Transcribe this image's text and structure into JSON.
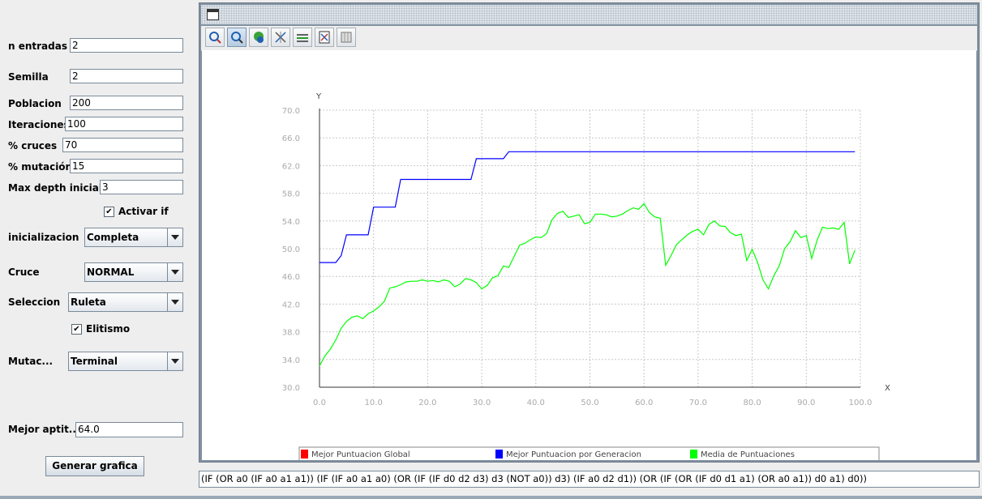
{
  "params": {
    "n_entradas": {
      "label": "n entradas",
      "value": "2"
    },
    "semilla": {
      "label": "Semilla",
      "value": "2"
    },
    "poblacion": {
      "label": "Poblacion",
      "value": "200"
    },
    "iteraciones": {
      "label": "Iteraciones",
      "value": "100"
    },
    "cruces": {
      "label": "% cruces",
      "value": "70"
    },
    "mutacion": {
      "label": "% mutación",
      "value": "15"
    },
    "max_depth": {
      "label": "Max depth inicial",
      "value": "3"
    },
    "activar_if": {
      "label": "Activar if",
      "checked": true
    },
    "inicializacion": {
      "label": "inicializacion",
      "value": "Completa"
    },
    "cruce": {
      "label": "Cruce",
      "value": "NORMAL"
    },
    "seleccion": {
      "label": "Seleccion",
      "value": "Ruleta"
    },
    "elitismo": {
      "label": "Elitismo",
      "checked": true
    },
    "mutac": {
      "label": "Mutac...",
      "value": "Terminal"
    },
    "mejor_aptitud": {
      "label": "Mejor aptit...",
      "value": "64.0"
    },
    "generar_label": "Generar grafica"
  },
  "toolbar": {
    "icons": [
      "zoom-select-icon",
      "zoom-icon",
      "pan-icon",
      "fit-axes-icon",
      "grid-toggle-icon",
      "export-icon",
      "table-icon"
    ]
  },
  "expression": "(IF (OR a0 (IF a0 a1 a1)) (IF (IF a0 a1 a0) (OR (IF (IF d0 d2 d3) d3 (NOT a0)) d3) (IF a0 d2 d1)) (OR (IF (OR (IF d0 d1 a1) (OR a0 a1)) d0 a1) d0))",
  "chart_data": {
    "type": "line",
    "xlabel": "X",
    "ylabel": "Y",
    "xlim": [
      0,
      100
    ],
    "ylim": [
      30,
      70
    ],
    "xticks": [
      "0.0",
      "10.0",
      "20.0",
      "30.0",
      "40.0",
      "50.0",
      "60.0",
      "70.0",
      "80.0",
      "90.0",
      "100.0"
    ],
    "yticks": [
      "30.0",
      "34.0",
      "38.0",
      "42.0",
      "46.0",
      "50.0",
      "54.0",
      "58.0",
      "62.0",
      "66.0",
      "70.0"
    ],
    "grid": true,
    "legend_position": "bottom",
    "series": [
      {
        "name": "Mejor Puntuacion Global",
        "color": "#ff0000",
        "points": []
      },
      {
        "name": "Mejor Puntuacion por Generacion",
        "color": "#0000ff",
        "points": [
          [
            0,
            48
          ],
          [
            3,
            48
          ],
          [
            4,
            49
          ],
          [
            5,
            52
          ],
          [
            9,
            52
          ],
          [
            10,
            56
          ],
          [
            14,
            56
          ],
          [
            15,
            60
          ],
          [
            28,
            60
          ],
          [
            29,
            63
          ],
          [
            34,
            63
          ],
          [
            35,
            64
          ],
          [
            99,
            64
          ]
        ]
      },
      {
        "name": "Media de Puntuaciones",
        "color": "#00ff00",
        "points": [
          [
            0,
            33.1
          ],
          [
            1,
            34.5
          ],
          [
            2,
            35.5
          ],
          [
            3,
            36.8
          ],
          [
            4,
            38.5
          ],
          [
            5,
            39.5
          ],
          [
            6,
            40.1
          ],
          [
            7,
            40.3
          ],
          [
            8,
            39.9
          ],
          [
            9,
            40.6
          ],
          [
            10,
            41
          ],
          [
            11,
            41.6
          ],
          [
            12,
            42.4
          ],
          [
            13,
            44.3
          ],
          [
            14,
            44.5
          ],
          [
            15,
            44.8
          ],
          [
            16,
            45.2
          ],
          [
            17,
            45.3
          ],
          [
            18,
            45.3
          ],
          [
            19,
            45.5
          ],
          [
            20,
            45.3
          ],
          [
            21,
            45.4
          ],
          [
            22,
            45.2
          ],
          [
            23,
            45.5
          ],
          [
            24,
            45.3
          ],
          [
            25,
            44.5
          ],
          [
            26,
            44.9
          ],
          [
            27,
            45.7
          ],
          [
            28,
            45.5
          ],
          [
            29,
            45.1
          ],
          [
            30,
            44.2
          ],
          [
            31,
            44.7
          ],
          [
            32,
            45.8
          ],
          [
            33,
            46.1
          ],
          [
            34,
            47.5
          ],
          [
            35,
            47.3
          ],
          [
            36,
            48.9
          ],
          [
            37,
            50.5
          ],
          [
            38,
            50.8
          ],
          [
            39,
            51.3
          ],
          [
            40,
            51.7
          ],
          [
            41,
            51.6
          ],
          [
            42,
            52.2
          ],
          [
            43,
            54.2
          ],
          [
            44,
            55.1
          ],
          [
            45,
            55.4
          ],
          [
            46,
            54.5
          ],
          [
            47,
            54.7
          ],
          [
            48,
            54.9
          ],
          [
            49,
            53.6
          ],
          [
            50,
            53.8
          ],
          [
            51,
            55
          ],
          [
            52,
            55
          ],
          [
            53,
            54.9
          ],
          [
            54,
            54.6
          ],
          [
            55,
            54.7
          ],
          [
            56,
            55
          ],
          [
            57,
            55.5
          ],
          [
            58,
            55.9
          ],
          [
            59,
            55.7
          ],
          [
            60,
            56.5
          ],
          [
            61,
            55.2
          ],
          [
            62,
            54.6
          ],
          [
            63,
            54.4
          ],
          [
            64,
            47.6
          ],
          [
            65,
            49
          ],
          [
            66,
            50.6
          ],
          [
            67,
            51.3
          ],
          [
            68,
            52
          ],
          [
            69,
            52.5
          ],
          [
            70,
            52.8
          ],
          [
            71,
            52
          ],
          [
            72,
            53.5
          ],
          [
            73,
            54
          ],
          [
            74,
            53.3
          ],
          [
            75,
            53.2
          ],
          [
            76,
            52.3
          ],
          [
            77,
            51.9
          ],
          [
            78,
            52.1
          ],
          [
            79,
            48.3
          ],
          [
            80,
            49.9
          ],
          [
            81,
            48
          ],
          [
            82,
            45.5
          ],
          [
            83,
            44.2
          ],
          [
            84,
            46.1
          ],
          [
            85,
            47.5
          ],
          [
            86,
            50
          ],
          [
            87,
            51
          ],
          [
            88,
            52.6
          ],
          [
            89,
            51.6
          ],
          [
            90,
            51.9
          ],
          [
            91,
            48.6
          ],
          [
            92,
            51.2
          ],
          [
            93,
            53.1
          ],
          [
            94,
            52.9
          ],
          [
            95,
            53
          ],
          [
            96,
            52.8
          ],
          [
            97,
            53.8
          ],
          [
            98,
            47.8
          ],
          [
            99,
            49.8
          ]
        ]
      }
    ]
  }
}
